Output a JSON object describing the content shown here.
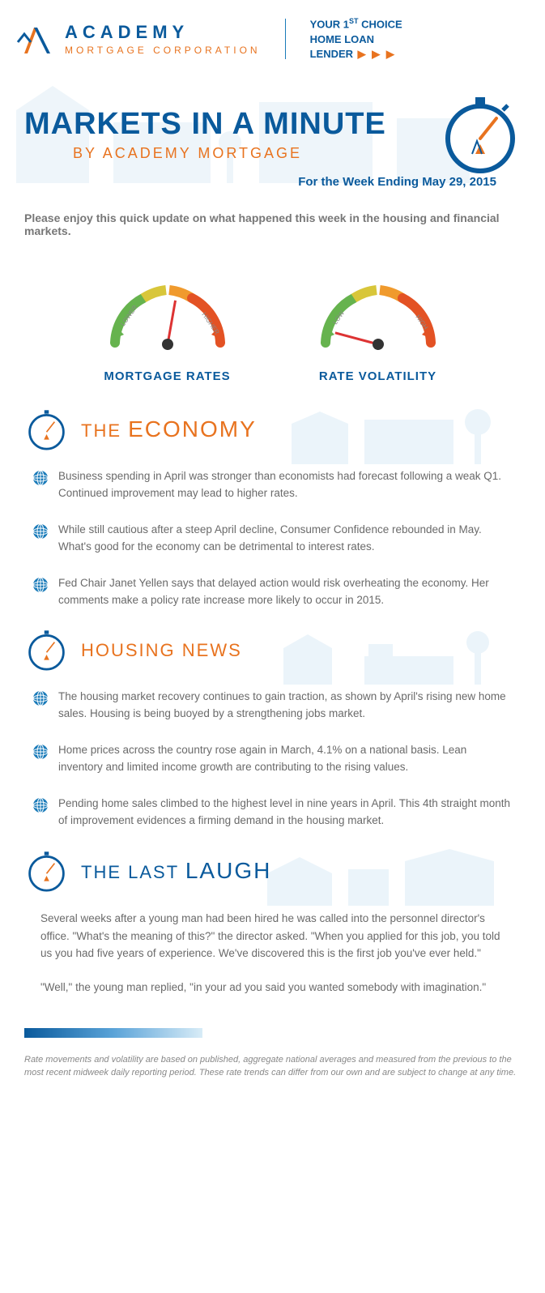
{
  "brand": {
    "name": "ACADEMY",
    "sub": "MORTGAGE CORPORATION",
    "tagline_l1": "YOUR 1",
    "tagline_sup": "ST",
    "tagline_l1b": " CHOICE",
    "tagline_l2": "HOME LOAN",
    "tagline_l3": "LENDER",
    "arrows": " ▶ ▶ ▶",
    "colors": {
      "blue": "#0a5a9c",
      "orange": "#e8731f",
      "light_blue": "#cfe5f3"
    }
  },
  "hero": {
    "title": "MARKETS IN A MINUTE",
    "subtitle": "BY ACADEMY MORTGAGE",
    "week": "For the Week Ending May 29, 2015"
  },
  "intro": "Please enjoy this quick update on what happened this week in the housing and financial markets.",
  "gauges": {
    "mortgage": {
      "label": "MORTGAGE RATES",
      "needle_angle_deg": 10,
      "left_text": "LOWER",
      "right_text": "HIGHER",
      "colors": {
        "low": "#66b34e",
        "mid1": "#d8c63a",
        "mid2": "#f09a2d",
        "high": "#e35224",
        "needle": "#d33",
        "ball": "#333"
      }
    },
    "volatility": {
      "label": "RATE VOLATILITY",
      "needle_angle_deg": -75,
      "left_text": "LOW",
      "right_text": "HIGH",
      "colors": {
        "low": "#66b34e",
        "mid1": "#d8c63a",
        "mid2": "#f09a2d",
        "high": "#e35224",
        "needle": "#d33",
        "ball": "#333"
      }
    }
  },
  "sections": {
    "economy": {
      "title_pre": "THE ",
      "title_main": "ECONOMY",
      "bullets": [
        "Business spending in April was stronger than economists had forecast following a weak Q1. Continued improvement may lead to higher rates.",
        "While still cautious after a steep April decline, Consumer Confidence rebounded in May. What's good for the economy can be detrimental to interest rates.",
        "Fed Chair Janet Yellen says that delayed action would risk overheating the economy. Her comments make a policy rate increase more likely to occur in 2015."
      ]
    },
    "housing": {
      "title_pre": "HOUSING ",
      "title_main": "NEWS",
      "bullets": [
        "The housing market recovery continues to gain traction, as shown by April's rising new home sales. Housing is being buoyed by a strengthening jobs market.",
        "Home prices across the country rose again in March, 4.1% on a national basis. Lean inventory and limited income growth are contributing to the rising values.",
        "Pending home sales climbed to the highest level in nine years in April. This 4th straight month of improvement evidences a firming demand in the housing market."
      ]
    },
    "laugh": {
      "title_pre": "THE LAST ",
      "title_main": "LAUGH",
      "p1": "Several weeks after a young man had been hired he was called into the personnel director's office. \"What's the meaning of this?\" the director asked. \"When you applied for this job, you told us you had five years of experience. We've discovered this is the first job you've ever held.\"",
      "p2": "\"Well,\" the young man replied, \"in your ad you said you wanted somebody with imagination.\""
    }
  },
  "disclaimer": "Rate movements and volatility are based on published, aggregate national averages and measured from the previous to the most recent midweek daily reporting period. These rate trends can differ from our own and are subject to change at any time."
}
